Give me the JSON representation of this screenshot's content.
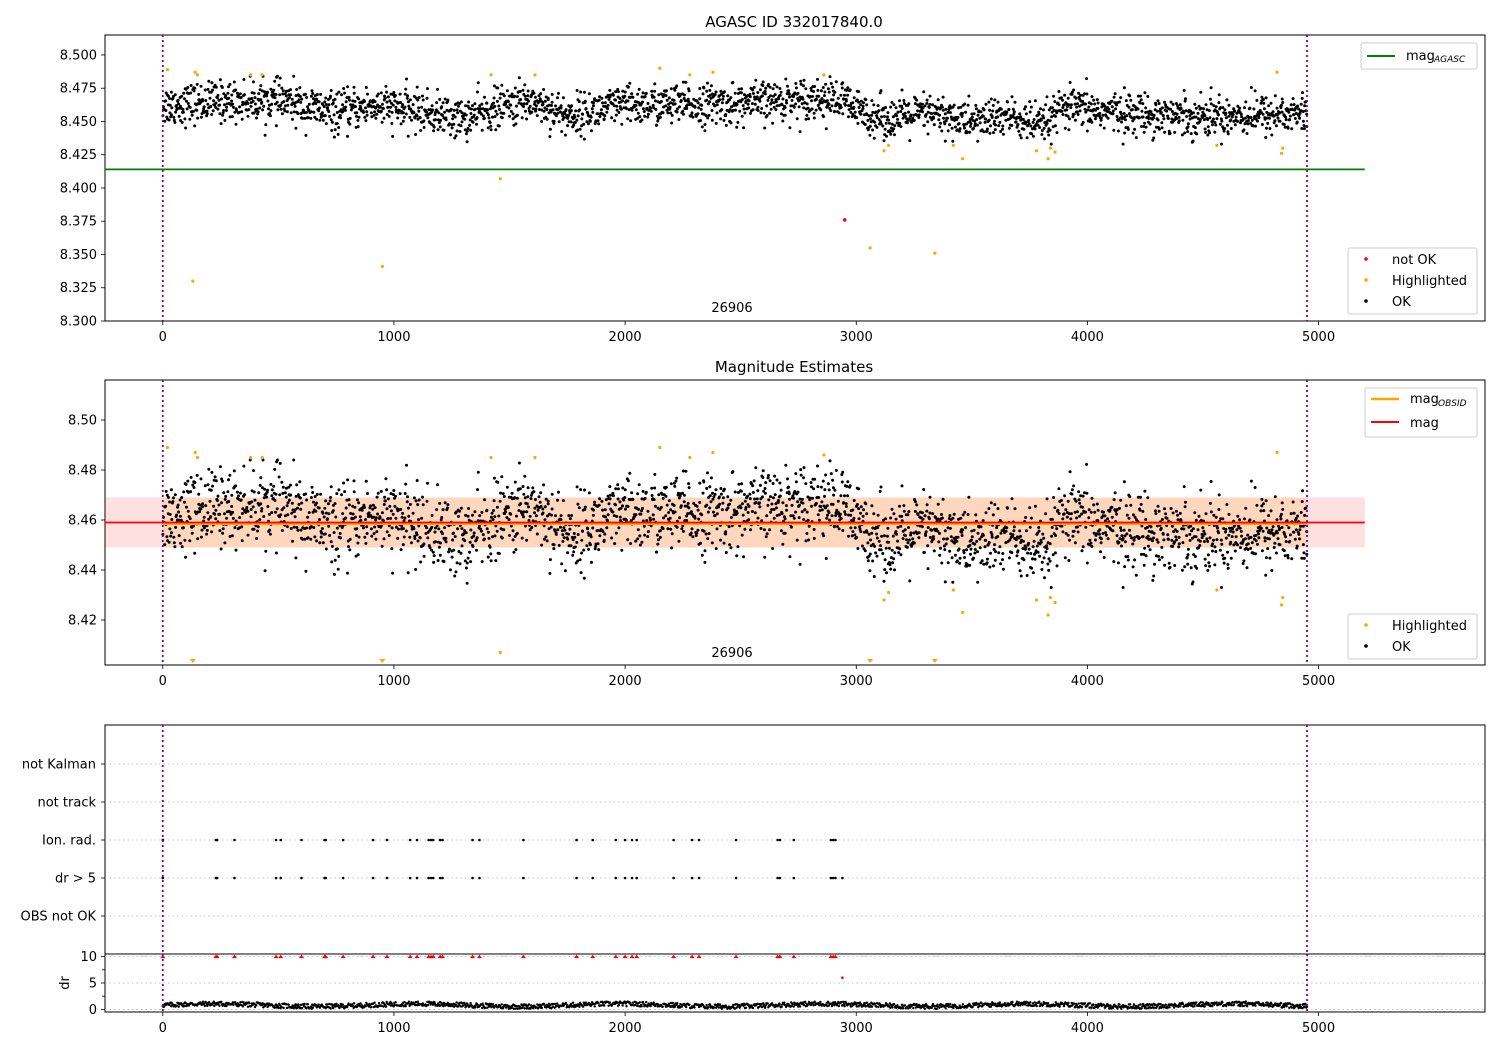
{
  "chart_data": [
    {
      "type": "scatter",
      "title": "AGASC ID 332017840.0",
      "xlim": [
        -250,
        5720
      ],
      "ylim": [
        8.3,
        8.515
      ],
      "x_ticks": [
        0,
        1000,
        2000,
        3000,
        4000,
        5000
      ],
      "y_ticks": [
        "8.300",
        "8.325",
        "8.350",
        "8.375",
        "8.400",
        "8.425",
        "8.450",
        "8.475",
        "8.500"
      ],
      "annotation": "26906",
      "annotation_x": 2450,
      "obsid_boundaries": [
        0,
        4950
      ],
      "reference_line": {
        "name": "mag",
        "subscript": "AGASC",
        "value": 8.414,
        "x_range": [
          -250,
          5200
        ],
        "color": "#008000"
      },
      "legend": [
        {
          "name": "mag",
          "subscript": "AGASC",
          "kind": "line",
          "color": "#008000",
          "position": "top-right"
        },
        {
          "name": "not OK",
          "kind": "point",
          "color": "#ff0000",
          "position": "bottom-right"
        },
        {
          "name": "Highlighted",
          "kind": "point",
          "color": "#ffa500",
          "position": "bottom-right"
        },
        {
          "name": "OK",
          "kind": "point",
          "color": "#000000",
          "position": "bottom-right"
        }
      ],
      "ok_series": {
        "name": "OK",
        "x_range": [
          0,
          4950
        ],
        "count": 2600,
        "color": "#000000",
        "level_profile": [
          [
            0,
            8.462
          ],
          [
            250,
            8.465
          ],
          [
            500,
            8.466
          ],
          [
            750,
            8.456
          ],
          [
            900,
            8.462
          ],
          [
            1100,
            8.458
          ],
          [
            1300,
            8.452
          ],
          [
            1450,
            8.46
          ],
          [
            1600,
            8.466
          ],
          [
            1750,
            8.454
          ],
          [
            2000,
            8.462
          ],
          [
            2500,
            8.463
          ],
          [
            2800,
            8.468
          ],
          [
            2950,
            8.465
          ],
          [
            3000,
            8.458
          ],
          [
            3150,
            8.452
          ],
          [
            3300,
            8.456
          ],
          [
            3500,
            8.45
          ],
          [
            3650,
            8.454
          ],
          [
            3800,
            8.446
          ],
          [
            3900,
            8.46
          ],
          [
            4200,
            8.456
          ],
          [
            4500,
            8.454
          ],
          [
            4700,
            8.455
          ],
          [
            4950,
            8.456
          ]
        ]
      },
      "highlighted": [
        {
          "x": 20,
          "y": 8.489
        },
        {
          "x": 130,
          "y": 8.33
        },
        {
          "x": 140,
          "y": 8.487
        },
        {
          "x": 150,
          "y": 8.485
        },
        {
          "x": 380,
          "y": 8.485
        },
        {
          "x": 430,
          "y": 8.485
        },
        {
          "x": 950,
          "y": 8.341
        },
        {
          "x": 1420,
          "y": 8.485
        },
        {
          "x": 1460,
          "y": 8.407
        },
        {
          "x": 1610,
          "y": 8.485
        },
        {
          "x": 2150,
          "y": 8.49
        },
        {
          "x": 2280,
          "y": 8.485
        },
        {
          "x": 2380,
          "y": 8.487
        },
        {
          "x": 2860,
          "y": 8.485
        },
        {
          "x": 3060,
          "y": 8.355
        },
        {
          "x": 3120,
          "y": 8.428
        },
        {
          "x": 3140,
          "y": 8.432
        },
        {
          "x": 3340,
          "y": 8.351
        },
        {
          "x": 3420,
          "y": 8.432
        },
        {
          "x": 3460,
          "y": 8.422
        },
        {
          "x": 3780,
          "y": 8.428
        },
        {
          "x": 3830,
          "y": 8.422
        },
        {
          "x": 3840,
          "y": 8.43
        },
        {
          "x": 3860,
          "y": 8.427
        },
        {
          "x": 4560,
          "y": 8.432
        },
        {
          "x": 4820,
          "y": 8.487
        },
        {
          "x": 4840,
          "y": 8.426
        },
        {
          "x": 4845,
          "y": 8.43
        }
      ],
      "not_ok": [
        {
          "x": 2950,
          "y": 8.376
        }
      ]
    },
    {
      "type": "scatter",
      "title": "Magnitude Estimates",
      "xlim": [
        -250,
        5720
      ],
      "ylim": [
        8.402,
        8.516
      ],
      "x_ticks": [
        0,
        1000,
        2000,
        3000,
        4000,
        5000
      ],
      "y_ticks": [
        "8.42",
        "8.44",
        "8.46",
        "8.48",
        "8.50"
      ],
      "annotation": "26906",
      "annotation_x": 2450,
      "obsid_boundaries": [
        0,
        4950
      ],
      "band": {
        "low": 8.449,
        "high": 8.469,
        "x_range": [
          -250,
          5200
        ]
      },
      "band_obsid": {
        "low": 8.449,
        "high": 8.469,
        "x_range": [
          0,
          4950
        ]
      },
      "mag_line": {
        "name": "mag",
        "value": 8.459,
        "x_range": [
          -250,
          5200
        ],
        "color": "#ff0000"
      },
      "mag_obsid_line": {
        "name": "mag",
        "subscript": "OBSID",
        "value": 8.4585,
        "x_range": [
          0,
          4950
        ],
        "color": "#ffa500"
      },
      "legend": [
        {
          "name": "mag",
          "subscript": "OBSID",
          "kind": "line",
          "color": "#ffa500",
          "position": "top-right"
        },
        {
          "name": "mag",
          "kind": "line",
          "color": "#ff0000",
          "position": "top-right"
        },
        {
          "name": "Highlighted",
          "kind": "point",
          "color": "#ffa500",
          "position": "bottom-right"
        },
        {
          "name": "OK",
          "kind": "point",
          "color": "#000000",
          "position": "bottom-right"
        }
      ],
      "highlighted": [
        {
          "x": 20,
          "y": 8.489
        },
        {
          "x": 140,
          "y": 8.487
        },
        {
          "x": 150,
          "y": 8.485
        },
        {
          "x": 380,
          "y": 8.485
        },
        {
          "x": 430,
          "y": 8.485
        },
        {
          "x": 1420,
          "y": 8.485
        },
        {
          "x": 1460,
          "y": 8.407
        },
        {
          "x": 1610,
          "y": 8.485
        },
        {
          "x": 2150,
          "y": 8.489
        },
        {
          "x": 2280,
          "y": 8.485
        },
        {
          "x": 2380,
          "y": 8.487
        },
        {
          "x": 2860,
          "y": 8.486
        },
        {
          "x": 3120,
          "y": 8.428
        },
        {
          "x": 3140,
          "y": 8.431
        },
        {
          "x": 3420,
          "y": 8.432
        },
        {
          "x": 3460,
          "y": 8.423
        },
        {
          "x": 3780,
          "y": 8.428
        },
        {
          "x": 3830,
          "y": 8.422
        },
        {
          "x": 3840,
          "y": 8.429
        },
        {
          "x": 3860,
          "y": 8.427
        },
        {
          "x": 4560,
          "y": 8.432
        },
        {
          "x": 4820,
          "y": 8.487
        },
        {
          "x": 4840,
          "y": 8.426
        },
        {
          "x": 4845,
          "y": 8.429
        }
      ],
      "below_range_markers": [
        130,
        950,
        3060,
        3340
      ]
    },
    {
      "type": "scatter",
      "title": "",
      "xlim": [
        -250,
        5720
      ],
      "obsid_boundaries": [
        0,
        4950
      ],
      "categories": [
        "OBS not OK",
        "dr > 5",
        "Ion. rad.",
        "not track",
        "not Kalman"
      ],
      "flag_x": [
        0,
        230,
        235,
        310,
        490,
        510,
        600,
        700,
        705,
        780,
        910,
        970,
        1070,
        1100,
        1150,
        1160,
        1170,
        1200,
        1210,
        1340,
        1370,
        1560,
        1790,
        1860,
        1960,
        2000,
        2030,
        2050,
        2210,
        2290,
        2320,
        2480,
        2660,
        2670,
        2730,
        2890,
        2900,
        2910
      ],
      "dr_only_x": [
        2940
      ]
    },
    {
      "type": "scatter",
      "title": "",
      "xlim": [
        -250,
        5720
      ],
      "ylim": [
        -0.5,
        10.5
      ],
      "ylabel": "dr",
      "x_ticks": [
        0,
        1000,
        2000,
        3000,
        4000,
        5000
      ],
      "y_ticks": [
        "0",
        "5",
        "10"
      ],
      "obsid_boundaries": [
        0,
        4950
      ],
      "clipped_value": 10,
      "outlier": {
        "x": 2940,
        "y": 6
      }
    }
  ]
}
